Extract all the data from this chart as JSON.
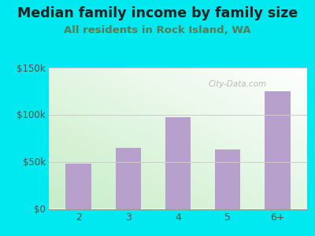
{
  "title": "Median family income by family size",
  "subtitle": "All residents in Rock Island, WA",
  "categories": [
    "2",
    "3",
    "4",
    "5",
    "6+"
  ],
  "values": [
    48000,
    65000,
    97000,
    63000,
    125000
  ],
  "bar_color": "#b8a0cc",
  "background_outer": "#00e8f0",
  "title_color": "#222222",
  "subtitle_color": "#5a7a5a",
  "tick_color": "#5a4a4a",
  "ylim": [
    0,
    150000
  ],
  "yticks": [
    0,
    50000,
    100000,
    150000
  ],
  "ytick_labels": [
    "$0",
    "$50k",
    "$100k",
    "$150k"
  ],
  "title_fontsize": 12.5,
  "subtitle_fontsize": 9.5,
  "watermark": "City-Data.com",
  "grad_colors": [
    "#c8e6c0",
    "#e8f5ee",
    "#f5fbf5",
    "#ffffff"
  ],
  "grid_color": "#cccccc"
}
